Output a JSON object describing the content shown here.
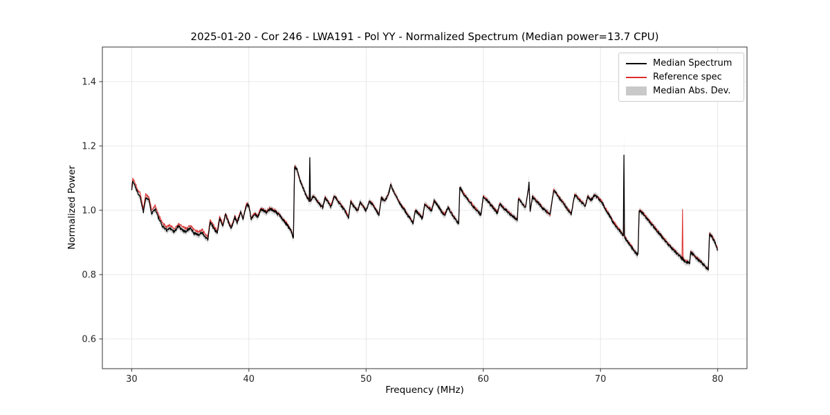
{
  "chart_data": {
    "type": "line",
    "title": "2025-01-20 - Cor 246 - LWA191 - Pol YY - Normalized Spectrum (Median power=13.7 CPU)",
    "xlabel": "Frequency (MHz)",
    "ylabel": "Normalized Power",
    "xlim": [
      27.5,
      82.5
    ],
    "ylim": [
      0.5075,
      1.5075
    ],
    "x_ticks": [
      30,
      40,
      50,
      60,
      70,
      80
    ],
    "x_tick_labels": [
      "30",
      "40",
      "50",
      "60",
      "70",
      "80"
    ],
    "y_ticks": [
      0.6,
      0.8,
      1.0,
      1.2,
      1.4
    ],
    "y_tick_labels": [
      "0.6",
      "0.8",
      "1.0",
      "1.2",
      "1.4"
    ],
    "grid": true,
    "legend_position": "upper right",
    "series": [
      {
        "name": "Median Spectrum",
        "color": "#000000",
        "line_width": 1.3
      },
      {
        "name": "Reference spec",
        "color": "#dd2c2c",
        "line_width": 1.1
      }
    ],
    "band": {
      "label": "Median Abs. Dev.",
      "color": "#c9c9c9",
      "opacity": 0.8,
      "base_halfwidth": 0.01,
      "extras": [
        {
          "x": 72.0,
          "amount": 0.05,
          "width": 0.06
        },
        {
          "x": 45.2,
          "amount": 0.018,
          "width": 0.06
        },
        {
          "x": 63.9,
          "amount": 0.012,
          "width": 0.06
        }
      ]
    },
    "noise_amplitude": 0.0038,
    "noise_seed": 1337,
    "points_format": [
      "frequency_mhz",
      "median_spectrum",
      "reference_spec"
    ],
    "points": [
      [
        30,
        1.065,
        1.075
      ],
      [
        30.1,
        1.09,
        1.098
      ],
      [
        30.3,
        1.075,
        1.085
      ],
      [
        30.5,
        1.055,
        1.065
      ],
      [
        30.7,
        1.045,
        1.056
      ],
      [
        31,
        0.995,
        1.005
      ],
      [
        31.2,
        1.04,
        1.05
      ],
      [
        31.5,
        1.03,
        1.04
      ],
      [
        31.7,
        0.99,
        1.0
      ],
      [
        32,
        1.005,
        1.015
      ],
      [
        32.3,
        0.975,
        0.985
      ],
      [
        32.6,
        0.952,
        0.962
      ],
      [
        33,
        0.938,
        0.948
      ],
      [
        33.3,
        0.945,
        0.953
      ],
      [
        33.6,
        0.933,
        0.942
      ],
      [
        34,
        0.95,
        0.958
      ],
      [
        34.3,
        0.94,
        0.95
      ],
      [
        34.6,
        0.934,
        0.944
      ],
      [
        35,
        0.944,
        0.953
      ],
      [
        35.3,
        0.93,
        0.94
      ],
      [
        35.7,
        0.924,
        0.934
      ],
      [
        36,
        0.93,
        0.94
      ],
      [
        36.3,
        0.915,
        0.925
      ],
      [
        36.5,
        0.908,
        0.918
      ],
      [
        36.7,
        0.963,
        0.972
      ],
      [
        37,
        0.944,
        0.952
      ],
      [
        37.3,
        0.928,
        0.936
      ],
      [
        37.5,
        0.973,
        0.979
      ],
      [
        37.8,
        0.953,
        0.957
      ],
      [
        38,
        0.988,
        0.992
      ],
      [
        38.3,
        0.958,
        0.962
      ],
      [
        38.5,
        0.944,
        0.948
      ],
      [
        38.8,
        0.978,
        0.982
      ],
      [
        39,
        0.963,
        0.967
      ],
      [
        39.3,
        0.993,
        0.996
      ],
      [
        39.5,
        0.973,
        0.976
      ],
      [
        39.8,
        1.018,
        1.021
      ],
      [
        40,
        1.013,
        1.016
      ],
      [
        40.2,
        0.973,
        0.976
      ],
      [
        40.5,
        0.988,
        0.991
      ],
      [
        40.8,
        0.98,
        0.983
      ],
      [
        41,
        1.003,
        1.006
      ],
      [
        41.3,
        0.998,
        1.001
      ],
      [
        41.5,
        0.993,
        0.996
      ],
      [
        41.8,
        1.004,
        1.007
      ],
      [
        42,
        1.0,
        1.003
      ],
      [
        42.3,
        0.994,
        0.997
      ],
      [
        42.6,
        0.984,
        0.987
      ],
      [
        43,
        0.968,
        0.971
      ],
      [
        43.3,
        0.953,
        0.956
      ],
      [
        43.6,
        0.935,
        0.938
      ],
      [
        43.8,
        0.912,
        0.915
      ],
      [
        43.9,
        1.135,
        1.138
      ],
      [
        44.1,
        1.128,
        1.128
      ],
      [
        44.3,
        1.1,
        1.1
      ],
      [
        44.6,
        1.072,
        1.072
      ],
      [
        44.9,
        1.045,
        1.045
      ],
      [
        45.1,
        1.032,
        1.032
      ],
      [
        45.15,
        1.03,
        1.03
      ],
      [
        45.2,
        1.165,
        1.05
      ],
      [
        45.25,
        1.028,
        1.028
      ],
      [
        45.5,
        1.043,
        1.045
      ],
      [
        45.8,
        1.03,
        1.032
      ],
      [
        46,
        1.02,
        1.022
      ],
      [
        46.3,
        1.008,
        1.01
      ],
      [
        46.5,
        1.038,
        1.04
      ],
      [
        46.8,
        1.024,
        1.026
      ],
      [
        47,
        1.012,
        1.014
      ],
      [
        47.3,
        1.044,
        1.046
      ],
      [
        47.6,
        1.028,
        1.03
      ],
      [
        48,
        1.008,
        1.01
      ],
      [
        48.3,
        0.993,
        0.995
      ],
      [
        48.5,
        0.976,
        0.978
      ],
      [
        48.7,
        1.028,
        1.03
      ],
      [
        49,
        1.01,
        1.012
      ],
      [
        49.3,
        0.998,
        1.0
      ],
      [
        49.5,
        1.024,
        1.026
      ],
      [
        49.8,
        1.008,
        1.01
      ],
      [
        50,
        0.998,
        1.0
      ],
      [
        50.3,
        1.028,
        1.03
      ],
      [
        50.6,
        1.016,
        1.018
      ],
      [
        50.9,
        0.998,
        1.0
      ],
      [
        51.1,
        0.985,
        0.987
      ],
      [
        51.3,
        1.038,
        1.04
      ],
      [
        51.6,
        1.028,
        1.03
      ],
      [
        51.9,
        1.048,
        1.05
      ],
      [
        52.1,
        1.078,
        1.08
      ],
      [
        52.3,
        1.062,
        1.064
      ],
      [
        52.6,
        1.04,
        1.042
      ],
      [
        52.9,
        1.02,
        1.022
      ],
      [
        53.2,
        1.005,
        1.007
      ],
      [
        53.5,
        0.988,
        0.99
      ],
      [
        53.8,
        0.972,
        0.974
      ],
      [
        54,
        0.958,
        0.96
      ],
      [
        54.2,
        0.998,
        1.0
      ],
      [
        54.5,
        0.988,
        0.99
      ],
      [
        54.8,
        0.974,
        0.976
      ],
      [
        55,
        1.018,
        1.02
      ],
      [
        55.3,
        1.008,
        1.01
      ],
      [
        55.6,
        0.998,
        1.0
      ],
      [
        55.8,
        1.028,
        1.03
      ],
      [
        56.1,
        1.015,
        1.017
      ],
      [
        56.4,
        0.998,
        1.0
      ],
      [
        56.7,
        0.985,
        0.987
      ],
      [
        57,
        1.008,
        1.01
      ],
      [
        57.3,
        0.99,
        0.992
      ],
      [
        57.6,
        0.972,
        0.974
      ],
      [
        57.9,
        0.958,
        0.96
      ],
      [
        58,
        1.07,
        1.072
      ],
      [
        58.3,
        1.052,
        1.054
      ],
      [
        58.6,
        1.038,
        1.04
      ],
      [
        58.9,
        1.024,
        1.026
      ],
      [
        59.2,
        1.01,
        1.012
      ],
      [
        59.5,
        0.998,
        1.0
      ],
      [
        59.8,
        0.985,
        0.987
      ],
      [
        60,
        1.042,
        1.044
      ],
      [
        60.3,
        1.032,
        1.034
      ],
      [
        60.6,
        1.018,
        1.02
      ],
      [
        60.9,
        1.005,
        1.007
      ],
      [
        61.2,
        0.992,
        0.994
      ],
      [
        61.4,
        1.018,
        1.02
      ],
      [
        61.7,
        1.008,
        1.01
      ],
      [
        62,
        0.998,
        1.0
      ],
      [
        62.3,
        0.988,
        0.99
      ],
      [
        62.6,
        0.978,
        0.98
      ],
      [
        62.9,
        0.97,
        0.972
      ],
      [
        63,
        1.038,
        1.04
      ],
      [
        63.3,
        1.022,
        1.024
      ],
      [
        63.6,
        1.008,
        1.01
      ],
      [
        63.85,
        1.065,
        1.067
      ],
      [
        63.9,
        1.085,
        1.08
      ],
      [
        64,
        0.995,
        0.997
      ],
      [
        64.2,
        1.042,
        1.044
      ],
      [
        64.5,
        1.03,
        1.032
      ],
      [
        64.8,
        1.018,
        1.02
      ],
      [
        65.1,
        1.005,
        1.007
      ],
      [
        65.4,
        0.995,
        0.997
      ],
      [
        65.7,
        0.985,
        0.987
      ],
      [
        66,
        1.062,
        1.064
      ],
      [
        66.3,
        1.048,
        1.05
      ],
      [
        66.6,
        1.032,
        1.034
      ],
      [
        66.9,
        1.018,
        1.02
      ],
      [
        67.2,
        1.002,
        1.004
      ],
      [
        67.5,
        0.988,
        0.99
      ],
      [
        67.8,
        1.048,
        1.05
      ],
      [
        68.1,
        1.038,
        1.04
      ],
      [
        68.4,
        1.025,
        1.027
      ],
      [
        68.7,
        1.012,
        1.014
      ],
      [
        68.9,
        1.042,
        1.044
      ],
      [
        69.2,
        1.03,
        1.032
      ],
      [
        69.5,
        1.048,
        1.05
      ],
      [
        69.8,
        1.038,
        1.04
      ],
      [
        70.1,
        1.025,
        1.027
      ],
      [
        70.4,
        1.005,
        1.007
      ],
      [
        70.7,
        0.988,
        0.99
      ],
      [
        71,
        0.968,
        0.97
      ],
      [
        71.3,
        0.952,
        0.954
      ],
      [
        71.6,
        0.938,
        0.94
      ],
      [
        71.9,
        0.922,
        0.924
      ],
      [
        71.95,
        0.92,
        0.922
      ],
      [
        72,
        1.175,
        0.955
      ],
      [
        72.05,
        0.918,
        0.92
      ],
      [
        72.2,
        0.908,
        0.91
      ],
      [
        72.5,
        0.893,
        0.895
      ],
      [
        72.8,
        0.878,
        0.88
      ],
      [
        73,
        0.868,
        0.87
      ],
      [
        73.2,
        0.862,
        0.864
      ],
      [
        73.3,
        1.0,
        1.002
      ],
      [
        73.5,
        0.995,
        0.997
      ],
      [
        73.8,
        0.982,
        0.984
      ],
      [
        74.1,
        0.968,
        0.97
      ],
      [
        74.4,
        0.955,
        0.957
      ],
      [
        74.7,
        0.942,
        0.944
      ],
      [
        75,
        0.928,
        0.93
      ],
      [
        75.3,
        0.915,
        0.917
      ],
      [
        75.6,
        0.902,
        0.904
      ],
      [
        75.9,
        0.89,
        0.892
      ],
      [
        76.2,
        0.878,
        0.88
      ],
      [
        76.5,
        0.866,
        0.868
      ],
      [
        76.8,
        0.856,
        0.858
      ],
      [
        76.95,
        0.85,
        0.852
      ],
      [
        77,
        0.852,
        1.0
      ],
      [
        77.05,
        0.846,
        0.848
      ],
      [
        77.3,
        0.84,
        0.842
      ],
      [
        77.6,
        0.835,
        0.837
      ],
      [
        77.7,
        0.87,
        0.872
      ],
      [
        78,
        0.858,
        0.86
      ],
      [
        78.3,
        0.848,
        0.85
      ],
      [
        78.6,
        0.838,
        0.84
      ],
      [
        78.9,
        0.826,
        0.828
      ],
      [
        79.1,
        0.818,
        0.82
      ],
      [
        79.2,
        0.815,
        0.817
      ],
      [
        79.3,
        0.925,
        0.927
      ],
      [
        79.5,
        0.918,
        0.92
      ],
      [
        79.8,
        0.898,
        0.9
      ],
      [
        80,
        0.875,
        0.877
      ]
    ]
  }
}
